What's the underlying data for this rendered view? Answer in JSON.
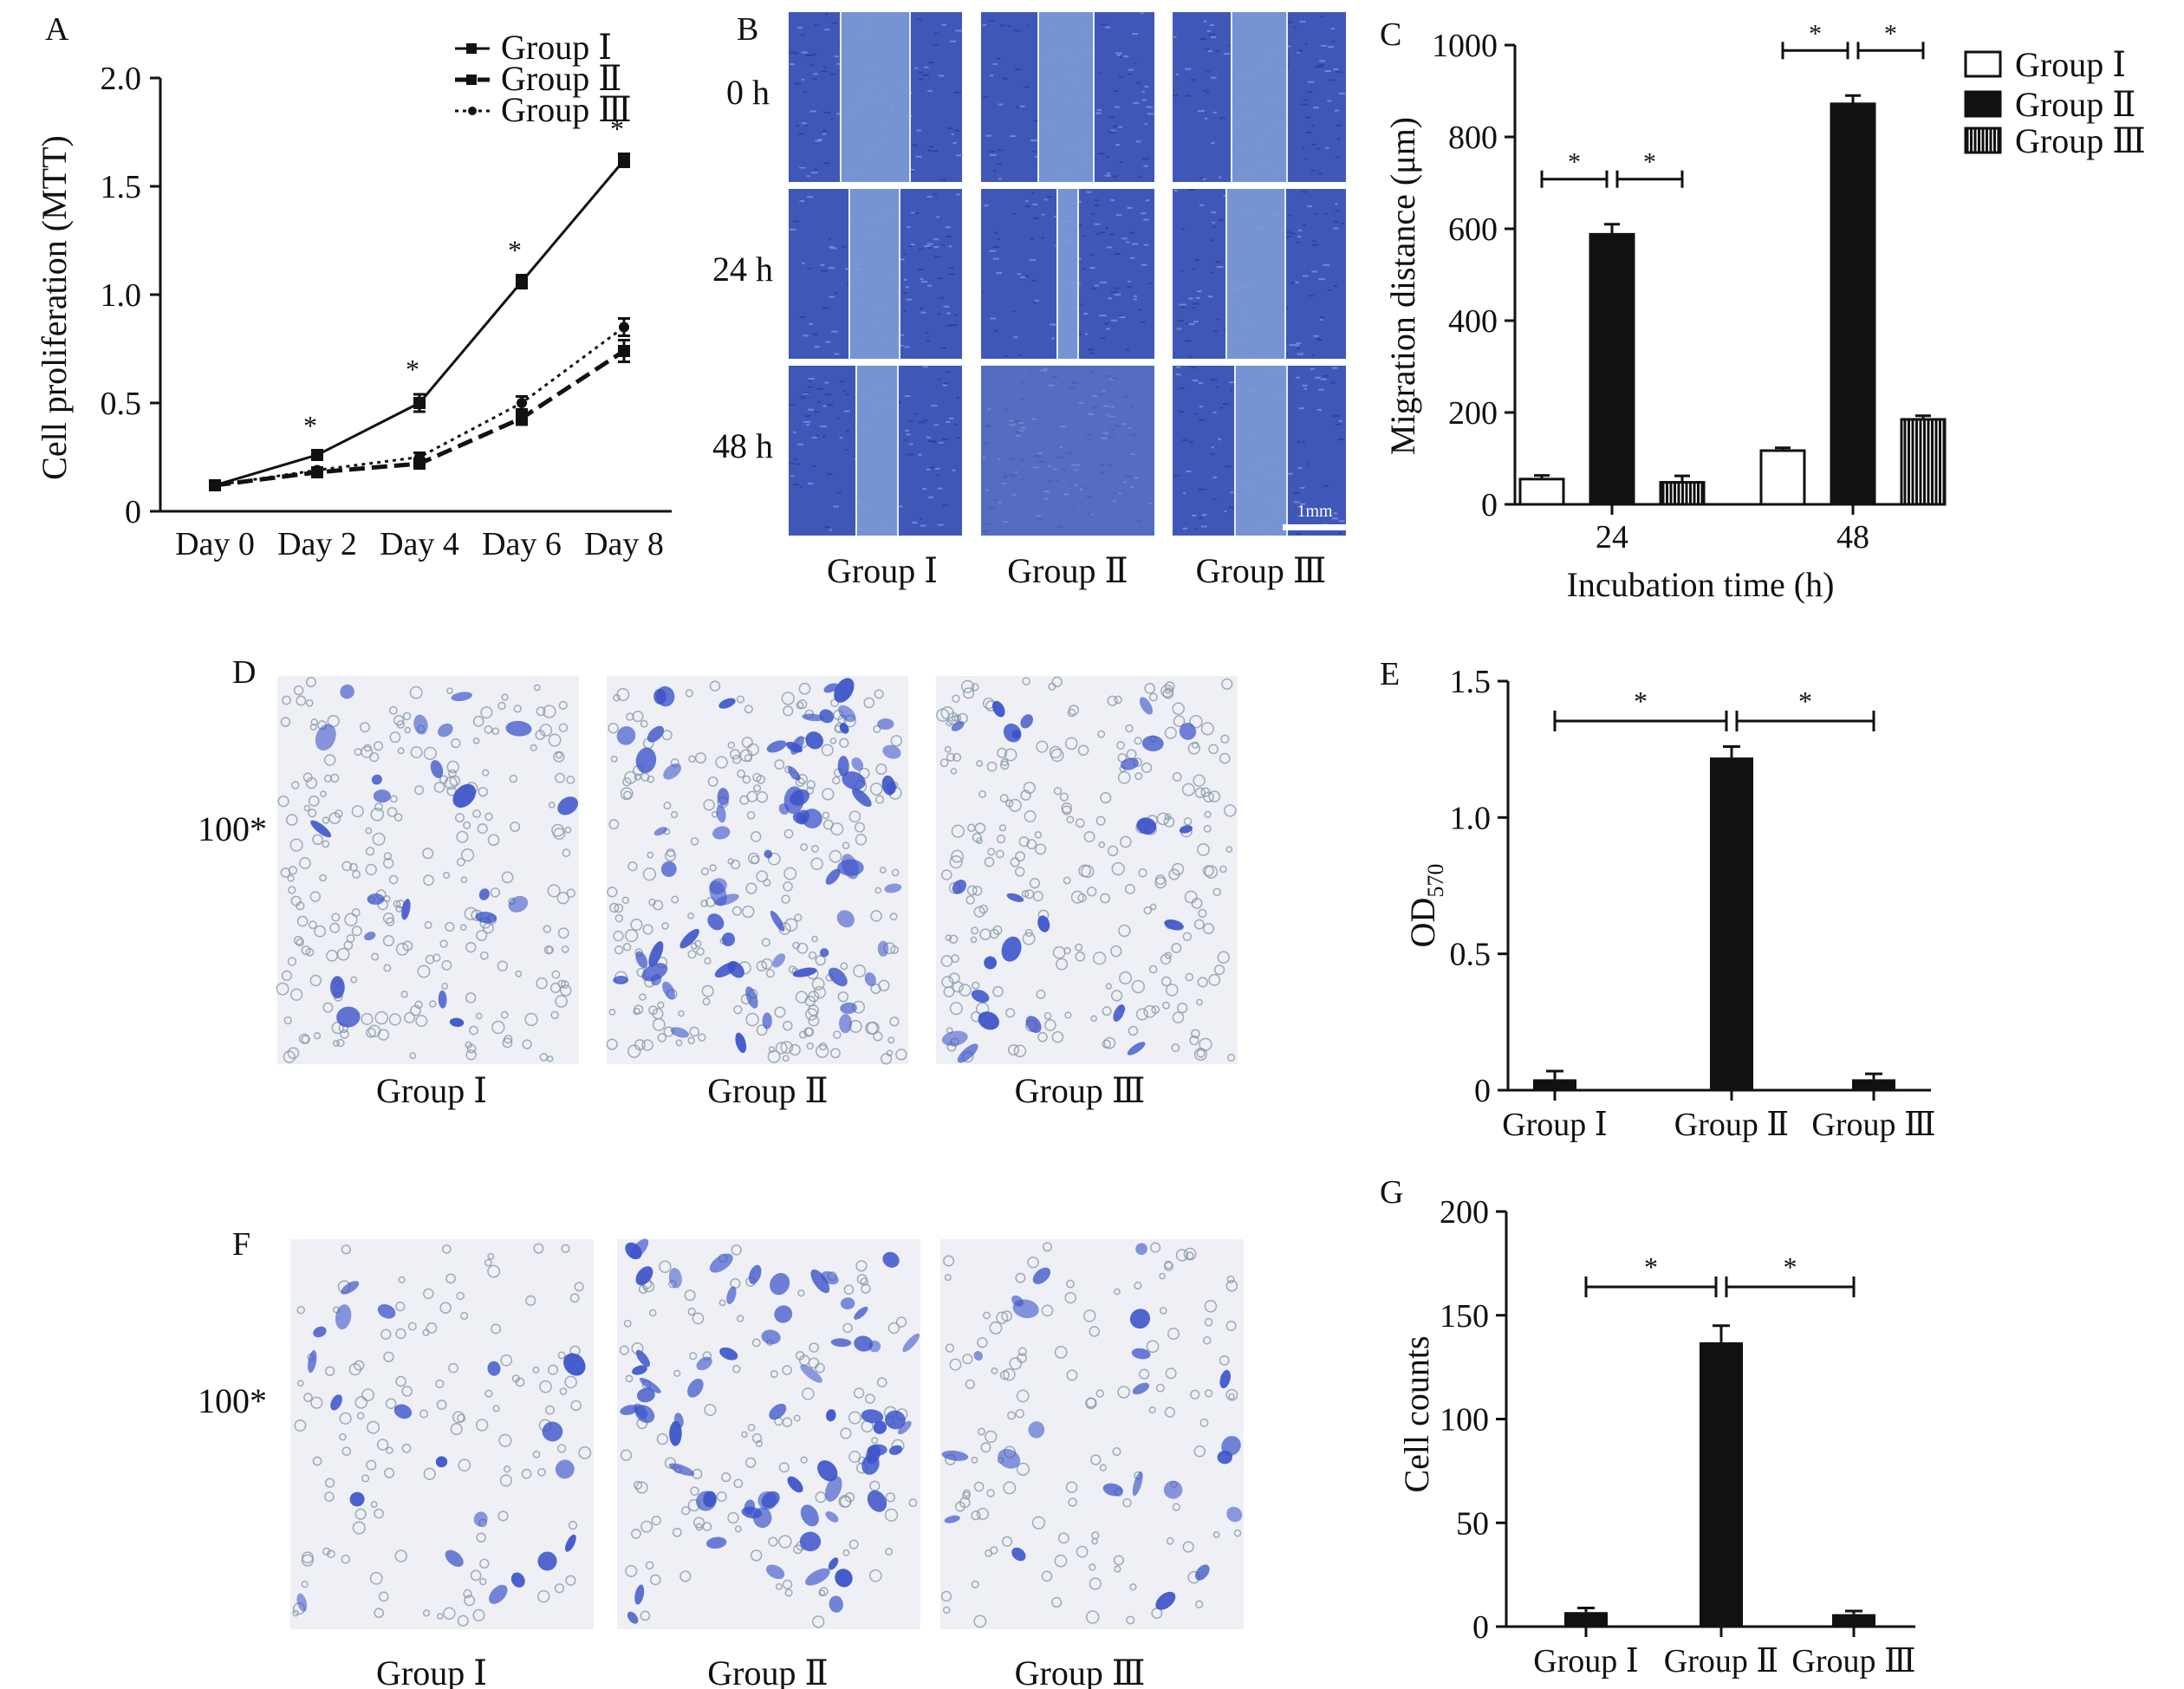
{
  "colors": {
    "ink": "#111111",
    "bar_fill_dark": "#111111",
    "bar_fill_white": "#ffffff",
    "stain_blue": "#3b53c9",
    "wound_bg": "#4a63be",
    "micro_bg": "#eef0f4"
  },
  "panel_A": {
    "letter": "A",
    "chart_data": {
      "type": "line",
      "ylabel": "Cell proliferation (MTT)",
      "xlabel": "",
      "categories": [
        "Day 0",
        "Day 2",
        "Day 4",
        "Day 6",
        "Day 8"
      ],
      "y_ticks": [
        "0",
        "0.5",
        "1.0",
        "1.5",
        "2.0"
      ],
      "ylim": [
        0,
        2.0
      ],
      "legend_position": "top-right",
      "series": [
        {
          "name": "Group Ⅰ",
          "values": [
            0.12,
            0.26,
            0.5,
            1.06,
            1.62
          ],
          "errors": [
            0.01,
            0.02,
            0.04,
            0.03,
            0.03
          ],
          "style": "solid",
          "marker": "square"
        },
        {
          "name": "Group Ⅱ",
          "values": [
            0.12,
            0.18,
            0.22,
            0.43,
            0.74
          ],
          "errors": [
            0.01,
            0.01,
            0.02,
            0.03,
            0.05
          ],
          "style": "dashed",
          "marker": "square"
        },
        {
          "name": "Group Ⅲ",
          "values": [
            0.12,
            0.19,
            0.25,
            0.5,
            0.85
          ],
          "errors": [
            0.01,
            0.01,
            0.02,
            0.03,
            0.04
          ],
          "style": "dotted",
          "marker": "circle"
        }
      ],
      "annotations": [
        "*",
        "*",
        "*",
        "*"
      ]
    }
  },
  "panel_B": {
    "letter": "B",
    "rows": [
      "0 h",
      "24 h",
      "48 h"
    ],
    "columns": [
      "Group Ⅰ",
      "Group Ⅱ",
      "Group Ⅲ"
    ],
    "scale_bar": "1mm"
  },
  "panel_C": {
    "letter": "C",
    "chart_data": {
      "type": "bar",
      "xlabel": "Incubation time (h)",
      "ylabel": "Migration distance (μm)",
      "categories": [
        "24",
        "48"
      ],
      "y_ticks": [
        "0",
        "200",
        "400",
        "600",
        "800",
        "1000"
      ],
      "ylim": [
        0,
        1000
      ],
      "legend_position": "top-right",
      "series": [
        {
          "name": "Group Ⅰ",
          "values": [
            55,
            117
          ],
          "errors": [
            8,
            6
          ],
          "fill": "white"
        },
        {
          "name": "Group Ⅱ",
          "values": [
            588,
            872
          ],
          "errors": [
            22,
            18
          ],
          "fill": "black"
        },
        {
          "name": "Group Ⅲ",
          "values": [
            48,
            185
          ],
          "errors": [
            14,
            8
          ],
          "fill": "hatched"
        }
      ],
      "annotations": [
        "*",
        "*",
        "*",
        "*"
      ]
    }
  },
  "panel_D": {
    "letter": "D",
    "magnification": "100*",
    "labels": [
      "Group Ⅰ",
      "Group Ⅱ",
      "Group Ⅲ"
    ]
  },
  "panel_E": {
    "letter": "E",
    "chart_data": {
      "type": "bar",
      "xlabel": "",
      "ylabel_main": "OD",
      "ylabel_sub": "570",
      "categories": [
        "Group Ⅰ",
        "Group Ⅱ",
        "Group Ⅲ"
      ],
      "values": [
        0.04,
        1.22,
        0.04
      ],
      "errors": [
        0.03,
        0.04,
        0.02
      ],
      "y_ticks": [
        "0",
        "0.5",
        "1.0",
        "1.5"
      ],
      "ylim": [
        0,
        1.5
      ],
      "annotations": [
        "*",
        "*"
      ]
    }
  },
  "panel_F": {
    "letter": "F",
    "magnification": "100*",
    "labels": [
      "Group Ⅰ",
      "Group Ⅱ",
      "Group Ⅲ"
    ]
  },
  "panel_G": {
    "letter": "G",
    "chart_data": {
      "type": "bar",
      "xlabel": "",
      "ylabel": "Cell counts",
      "categories": [
        "Group Ⅰ",
        "Group Ⅱ",
        "Group Ⅲ"
      ],
      "values": [
        7,
        137,
        6
      ],
      "errors": [
        2,
        8,
        1.5
      ],
      "y_ticks": [
        "0",
        "50",
        "100",
        "150",
        "200"
      ],
      "ylim": [
        0,
        200
      ],
      "annotations": [
        "*",
        "*"
      ]
    }
  }
}
